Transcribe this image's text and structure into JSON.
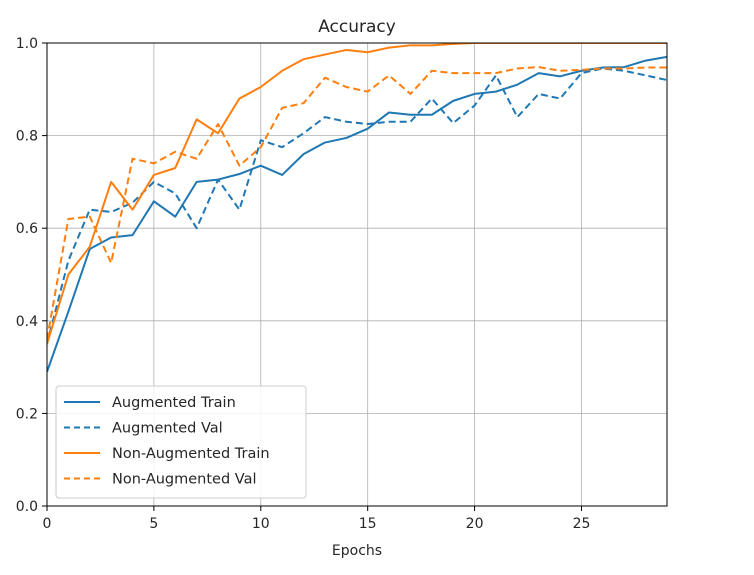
{
  "chart_data": {
    "type": "line",
    "title": "Accuracy",
    "xlabel": "Epochs",
    "ylabel": "",
    "xlim": [
      0,
      29
    ],
    "ylim": [
      0.0,
      1.0
    ],
    "xticks": [
      "0",
      "5",
      "10",
      "15",
      "20",
      "25"
    ],
    "yticks": [
      "0.0",
      "0.2",
      "0.4",
      "0.6",
      "0.8",
      "1.0"
    ],
    "grid": true,
    "legend_position": "lower-left",
    "x": [
      0,
      1,
      2,
      3,
      4,
      5,
      6,
      7,
      8,
      9,
      10,
      11,
      12,
      13,
      14,
      15,
      16,
      17,
      18,
      19,
      20,
      21,
      22,
      23,
      24,
      25,
      26,
      27,
      28,
      29
    ],
    "series": [
      {
        "name": "Augmented Train",
        "color": "#1f77b4",
        "style": "solid",
        "values": [
          0.29,
          0.42,
          0.555,
          0.58,
          0.585,
          0.658,
          0.625,
          0.7,
          0.705,
          0.717,
          0.735,
          0.715,
          0.76,
          0.785,
          0.795,
          0.815,
          0.85,
          0.845,
          0.845,
          0.875,
          0.89,
          0.895,
          0.91,
          0.935,
          0.928,
          0.94,
          0.947,
          0.948,
          0.962,
          0.97
        ]
      },
      {
        "name": "Augmented Val",
        "color": "#1f77b4",
        "style": "dashed",
        "values": [
          0.35,
          0.53,
          0.64,
          0.635,
          0.655,
          0.7,
          0.675,
          0.6,
          0.705,
          0.64,
          0.79,
          0.775,
          0.805,
          0.84,
          0.83,
          0.825,
          0.83,
          0.83,
          0.88,
          0.827,
          0.865,
          0.93,
          0.84,
          0.89,
          0.88,
          0.935,
          0.945,
          0.94,
          0.93,
          0.92
        ]
      },
      {
        "name": "Non-Augmented Train",
        "color": "#ff7f0e",
        "style": "solid",
        "values": [
          0.35,
          0.5,
          0.56,
          0.7,
          0.64,
          0.715,
          0.73,
          0.835,
          0.805,
          0.88,
          0.905,
          0.94,
          0.965,
          0.975,
          0.985,
          0.98,
          0.99,
          0.995,
          0.995,
          0.998,
          1.0,
          1.0,
          1.0,
          1.0,
          1.0,
          1.0,
          1.0,
          1.0,
          1.0,
          1.0
        ]
      },
      {
        "name": "Non-Augmented Val",
        "color": "#ff7f0e",
        "style": "dashed",
        "values": [
          0.36,
          0.62,
          0.625,
          0.525,
          0.75,
          0.74,
          0.765,
          0.75,
          0.825,
          0.735,
          0.775,
          0.86,
          0.87,
          0.925,
          0.905,
          0.895,
          0.93,
          0.89,
          0.94,
          0.935,
          0.935,
          0.935,
          0.945,
          0.948,
          0.94,
          0.942,
          0.945,
          0.945,
          0.947,
          0.947
        ]
      }
    ]
  }
}
